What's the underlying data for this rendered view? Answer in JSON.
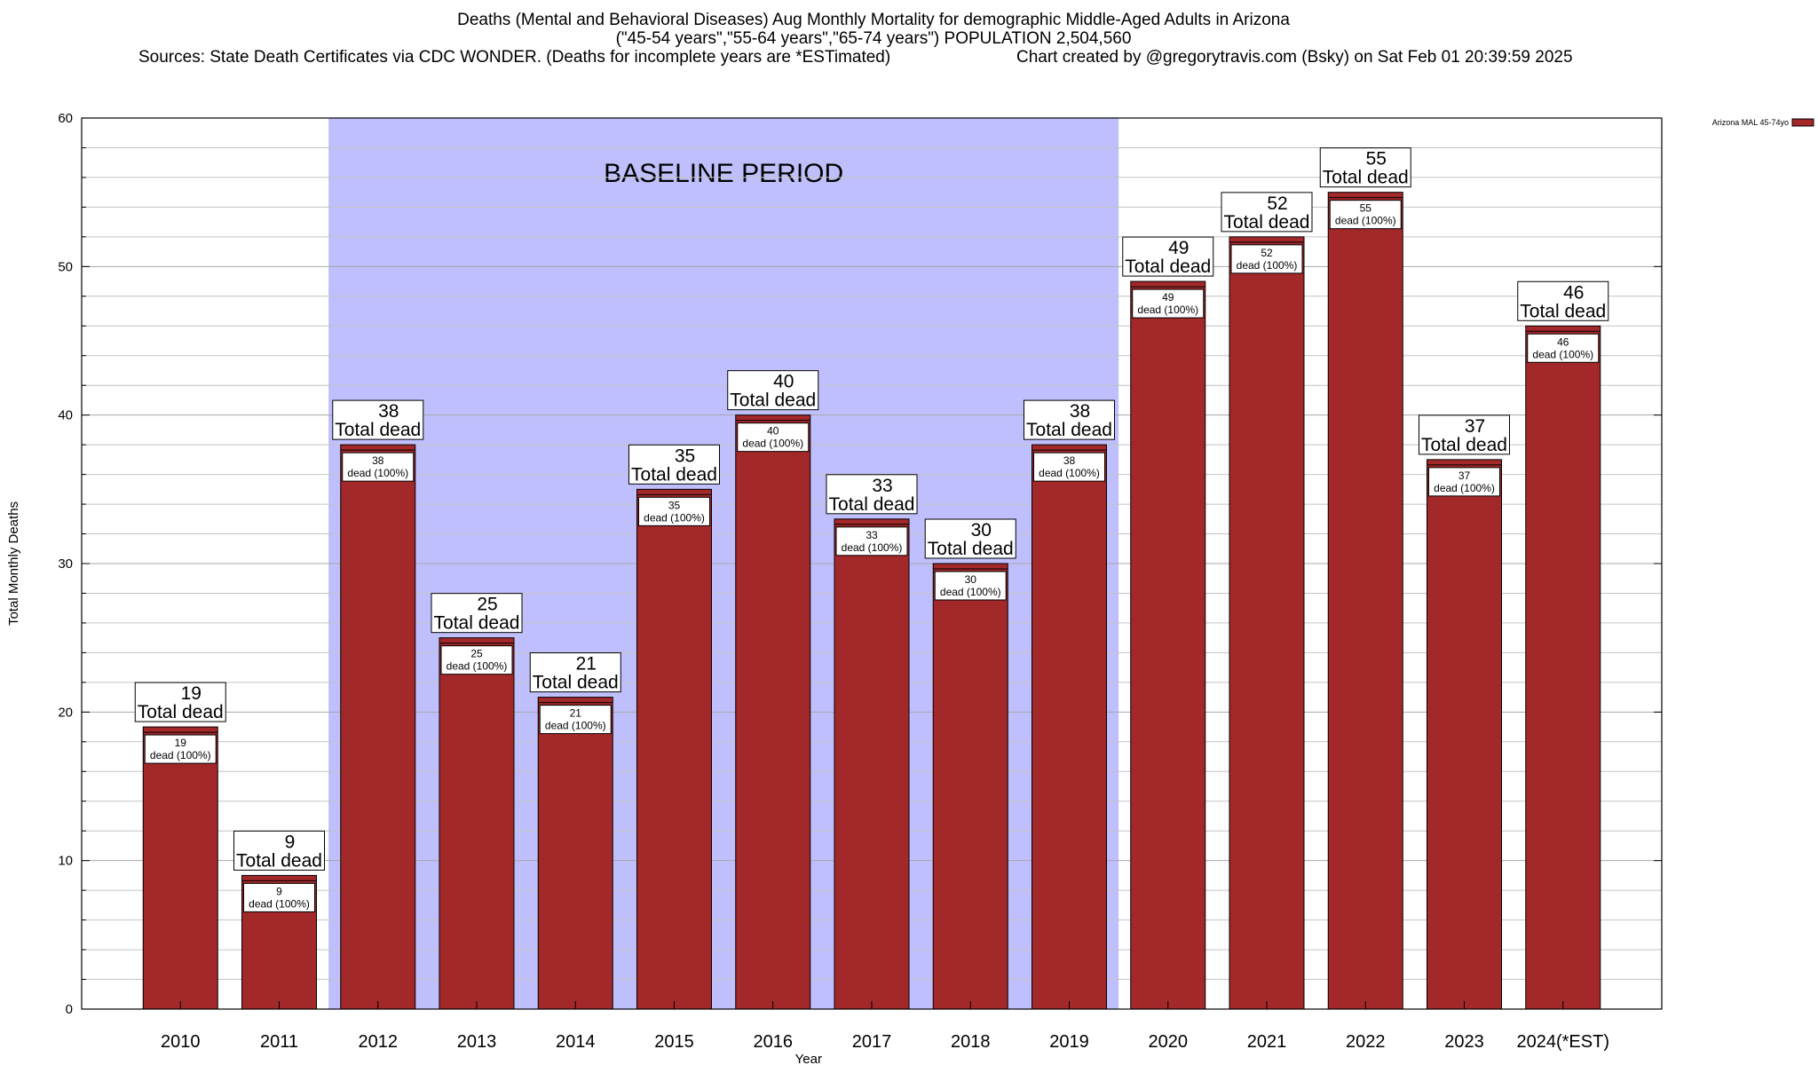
{
  "header": {
    "title_line1": "Deaths (Mental and Behavioral Diseases) Aug Monthly Mortality for demographic Middle-Aged Adults in Arizona",
    "title_line2": "(\"45-54 years\",\"55-64 years\",\"65-74 years\") POPULATION 2,504,560",
    "sources": "Sources: State Death Certificates via CDC WONDER. (Deaths for incomplete years are *ESTimated)",
    "credit": "Chart created by @gregorytravis.com (Bsky) on Sat Feb 01 20:39:59 2025"
  },
  "chart_data": {
    "type": "bar",
    "categories": [
      "2010",
      "2011",
      "2012",
      "2013",
      "2014",
      "2015",
      "2016",
      "2017",
      "2018",
      "2019",
      "2020",
      "2021",
      "2022",
      "2023",
      "2024(*EST)"
    ],
    "series": [
      {
        "name": "Arizona MAL 45-74yo",
        "values": [
          19,
          9,
          38,
          25,
          21,
          35,
          40,
          33,
          30,
          38,
          49,
          52,
          55,
          37,
          46
        ],
        "color": "#a3282a"
      }
    ],
    "top_label_suffix": "Total dead",
    "inner_label_suffix": "dead (100%)",
    "xlabel": "Year",
    "ylabel": "Total Monthly Deaths",
    "ylim": [
      0,
      60
    ],
    "y_ticks": [
      0,
      10,
      20,
      30,
      40,
      50,
      60
    ],
    "grid": true,
    "legend_position": "top-right",
    "annotation": {
      "text": "BASELINE PERIOD",
      "from_category": "2012",
      "to_category": "2019",
      "color": "#bfbffd"
    }
  }
}
